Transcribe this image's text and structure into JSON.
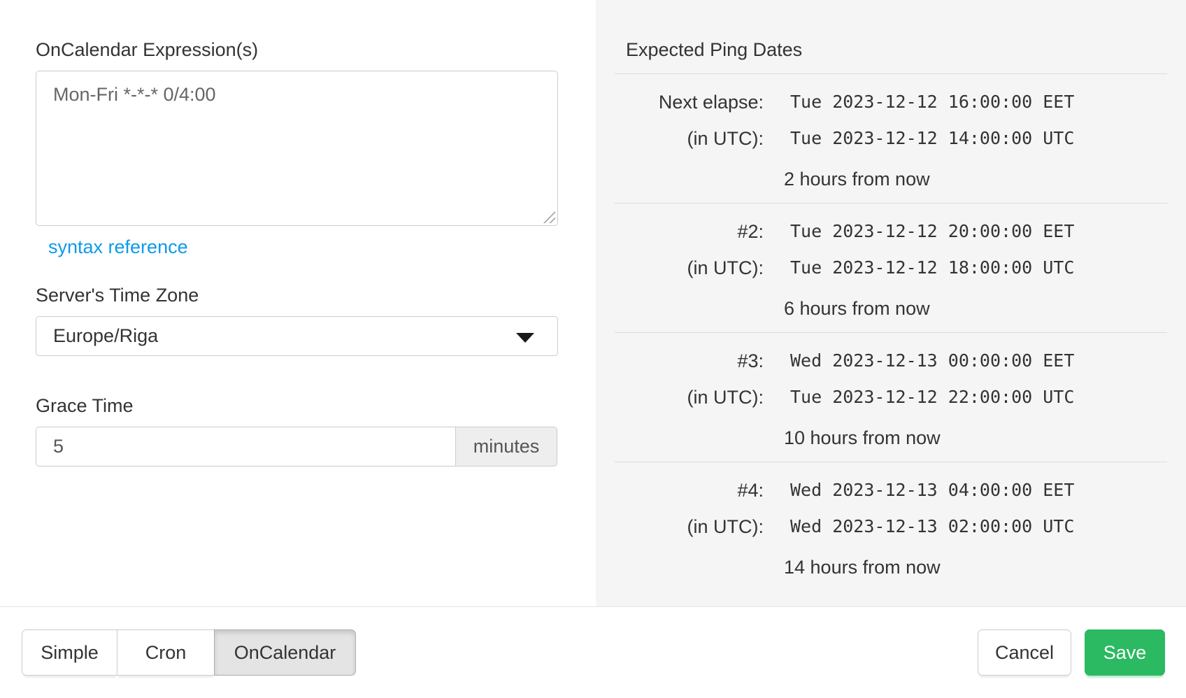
{
  "left_panel": {
    "expression_label": "OnCalendar Expression(s)",
    "expression_value": "Mon-Fri *-*-* 0/4:00",
    "syntax_reference_label": "syntax reference",
    "timezone_label": "Server's Time Zone",
    "timezone_value": "Europe/Riga",
    "grace_label": "Grace Time",
    "grace_value": "5",
    "grace_unit": "minutes"
  },
  "right_panel": {
    "title": "Expected Ping Dates",
    "rows": [
      {
        "label": "Next elapse:",
        "datetime": "Tue 2023-12-12 16:00:00 EET",
        "utc_label": "(in UTC):",
        "utc_datetime": "Tue 2023-12-12 14:00:00 UTC",
        "relative": "2 hours from now"
      },
      {
        "label": "#2:",
        "datetime": "Tue 2023-12-12 20:00:00 EET",
        "utc_label": "(in UTC):",
        "utc_datetime": "Tue 2023-12-12 18:00:00 UTC",
        "relative": "6 hours from now"
      },
      {
        "label": "#3:",
        "datetime": "Wed 2023-12-13 00:00:00 EET",
        "utc_label": "(in UTC):",
        "utc_datetime": "Tue 2023-12-12 22:00:00 UTC",
        "relative": "10 hours from now"
      },
      {
        "label": "#4:",
        "datetime": "Wed 2023-12-13 04:00:00 EET",
        "utc_label": "(in UTC):",
        "utc_datetime": "Wed 2023-12-13 02:00:00 UTC",
        "relative": "14 hours from now"
      }
    ]
  },
  "footer": {
    "tabs": [
      {
        "label": "Simple",
        "active": false
      },
      {
        "label": "Cron",
        "active": false
      },
      {
        "label": "OnCalendar",
        "active": true
      }
    ],
    "cancel_label": "Cancel",
    "save_label": "Save"
  },
  "icons": {
    "select_caret": "chevron-down-icon",
    "textarea_grip": "resize-grip-icon"
  },
  "colors": {
    "link_blue": "#0d9aec",
    "save_green": "#2bb962",
    "panel_gray": "#f5f5f5",
    "active_tab_gray": "#e4e4e4",
    "border_gray": "#cccccc"
  }
}
